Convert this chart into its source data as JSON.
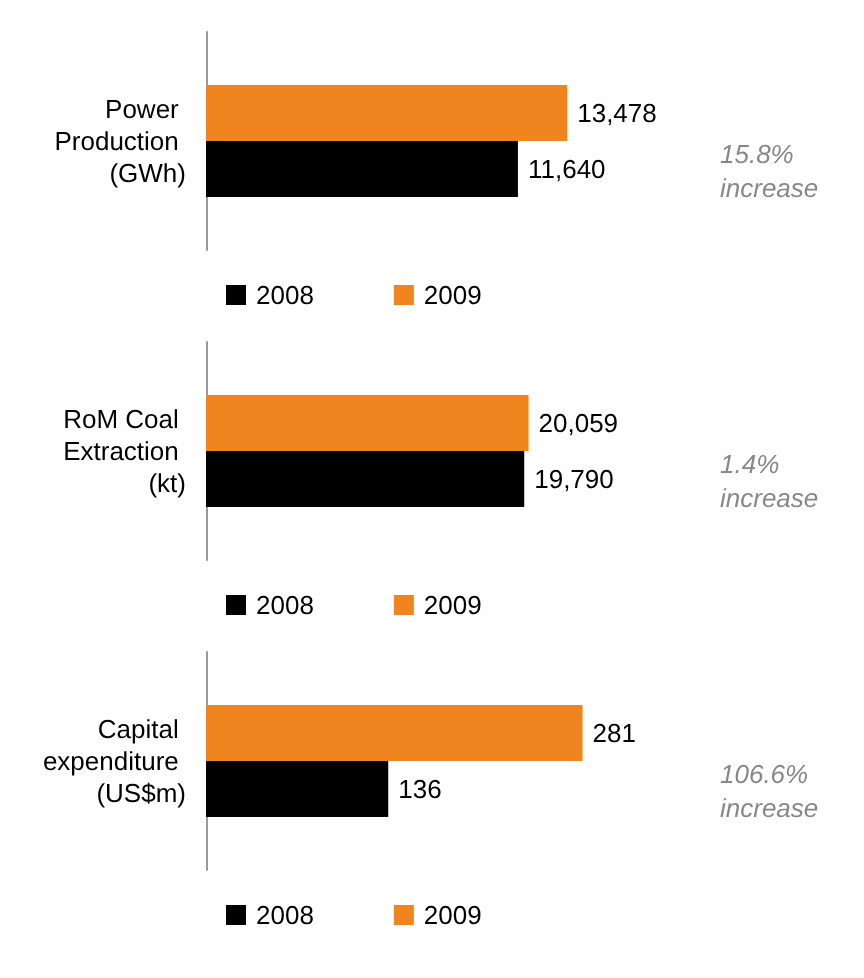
{
  "chart_data": [
    {
      "type": "bar",
      "orientation": "horizontal",
      "categories": [
        "Power Production (GWh)"
      ],
      "series": [
        {
          "name": "2008",
          "color": "#000000",
          "values": [
            11640
          ],
          "value_labels": [
            "11,640"
          ]
        },
        {
          "name": "2009",
          "color": "#f0841e",
          "values": [
            13478
          ],
          "value_labels": [
            "13,478"
          ]
        }
      ],
      "legend": "bottom",
      "grid": false,
      "annotations": [
        "15.8% increase"
      ]
    },
    {
      "type": "bar",
      "orientation": "horizontal",
      "categories": [
        "RoM Coal Extraction (kt)"
      ],
      "series": [
        {
          "name": "2008",
          "color": "#000000",
          "values": [
            19790
          ],
          "value_labels": [
            "19,790"
          ]
        },
        {
          "name": "2009",
          "color": "#f0841e",
          "values": [
            20059
          ],
          "value_labels": [
            "20,059"
          ]
        }
      ],
      "legend": "bottom",
      "grid": false,
      "annotations": [
        "1.4% increase"
      ]
    },
    {
      "type": "bar",
      "orientation": "horizontal",
      "categories": [
        "Capital expenditure (US$m)"
      ],
      "series": [
        {
          "name": "2008",
          "color": "#000000",
          "values": [
            136
          ],
          "value_labels": [
            "136"
          ]
        },
        {
          "name": "2009",
          "color": "#f0841e",
          "values": [
            281
          ],
          "value_labels": [
            "281"
          ]
        }
      ],
      "legend": "bottom",
      "grid": false,
      "annotations": [
        "106.6% increase"
      ]
    }
  ]
}
